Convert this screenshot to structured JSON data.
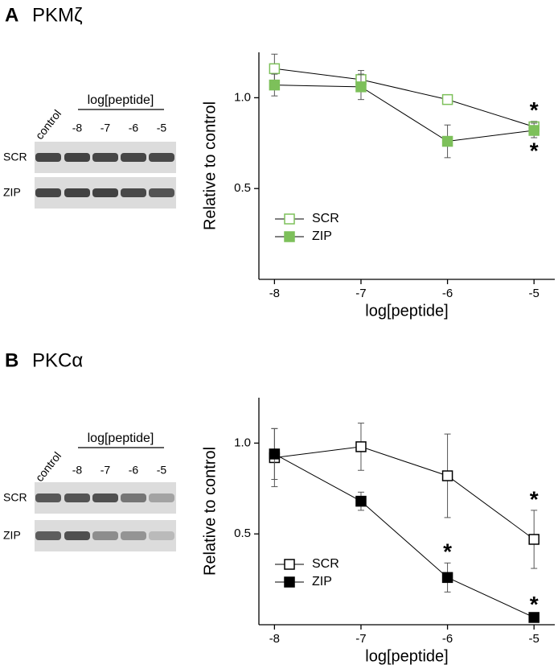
{
  "chart_data": [
    {
      "type": "line",
      "panel_label": "A",
      "title": "PKMζ",
      "title_color": "#7dc05a",
      "x": [
        -8,
        -7,
        -6,
        -5
      ],
      "xlim": [
        -8.18,
        -4.76
      ],
      "xticks": [
        -8,
        -7,
        -6,
        -5
      ],
      "ylim": [
        0,
        1.25
      ],
      "yticks": [
        0.5,
        {
          "value": 1,
          "label": "1.0"
        }
      ],
      "xlabel": "log[peptide]",
      "ylabel": "Relative to control",
      "legend": "lower left",
      "series": [
        {
          "name": "SCR",
          "color": "#7dc05a",
          "marker": "open-square",
          "values": [
            1.16,
            1.1,
            0.99,
            0.84
          ],
          "errors": [
            0.08,
            0.05,
            0.02,
            0.03
          ],
          "annotations": [
            null,
            null,
            null,
            "*"
          ]
        },
        {
          "name": "ZIP",
          "color": "#7dc05a",
          "marker": "filled-square",
          "values": [
            1.07,
            1.06,
            0.76,
            0.82
          ],
          "errors": [
            0.06,
            0.07,
            0.09,
            0.04
          ],
          "annotations": [
            null,
            null,
            null,
            "*"
          ]
        }
      ],
      "blot": {
        "header": "log[peptide]",
        "columns": [
          "control",
          "-8",
          "-7",
          "-6",
          "-5"
        ],
        "rows": [
          "SCR",
          "ZIP"
        ]
      }
    },
    {
      "type": "line",
      "panel_label": "B",
      "title": "PKCα",
      "title_color": "#000000",
      "x": [
        -8,
        -7,
        -6,
        -5
      ],
      "xlim": [
        -8.18,
        -4.76
      ],
      "xticks": [
        -8,
        -7,
        -6,
        -5
      ],
      "ylim": [
        0,
        1.25
      ],
      "yticks": [
        0.5,
        {
          "value": 1,
          "label": "1.0"
        }
      ],
      "xlabel": "log[peptide]",
      "ylabel": "Relative to control",
      "legend": "lower left",
      "series": [
        {
          "name": "SCR",
          "color": "#000000",
          "marker": "open-square",
          "values": [
            0.92,
            0.98,
            0.82,
            0.47
          ],
          "errors": [
            0.16,
            0.13,
            0.23,
            0.16
          ],
          "annotations": [
            null,
            null,
            null,
            "*"
          ]
        },
        {
          "name": "ZIP",
          "color": "#000000",
          "marker": "filled-square",
          "values": [
            0.94,
            0.68,
            0.26,
            0.04
          ],
          "errors": [
            0.14,
            0.05,
            0.08,
            0.01
          ],
          "annotations": [
            null,
            null,
            "*",
            "*"
          ]
        }
      ],
      "blot": {
        "header": "log[peptide]",
        "columns": [
          "control",
          "-8",
          "-7",
          "-6",
          "-5"
        ],
        "rows": [
          "SCR",
          "ZIP"
        ]
      }
    }
  ]
}
